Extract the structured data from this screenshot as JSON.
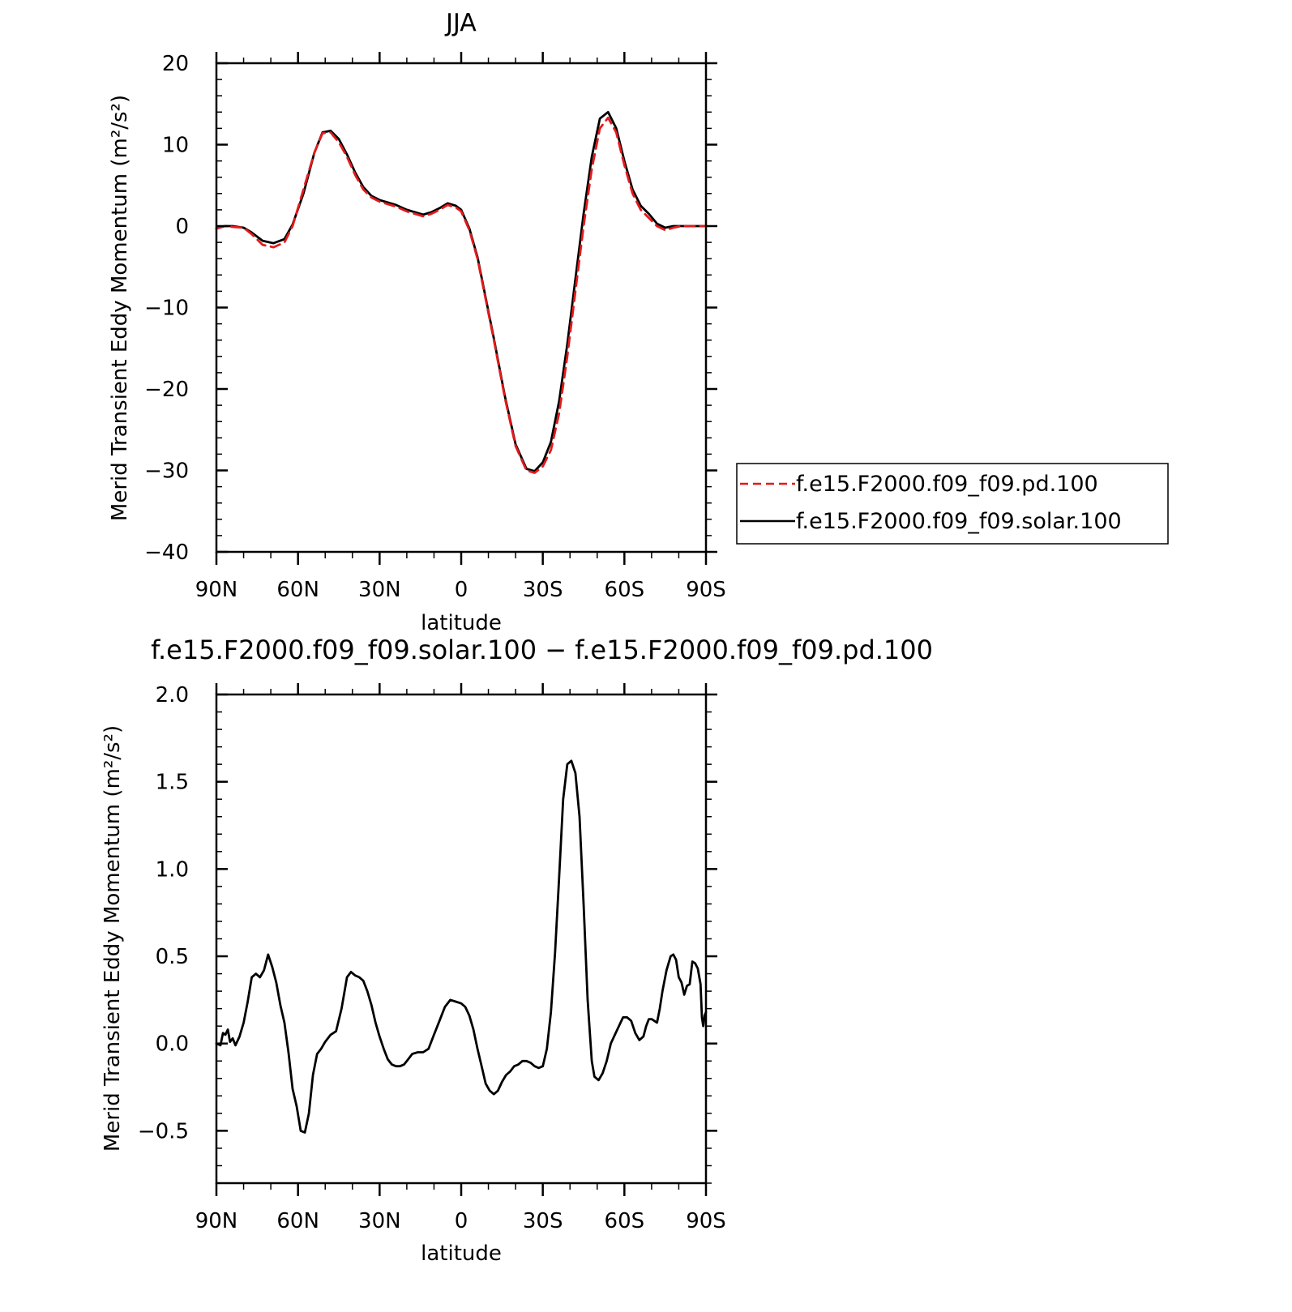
{
  "chart_data": [
    {
      "type": "line",
      "title": "JJA",
      "xlabel": "latitude",
      "ylabel": "Merid Transient Eddy Momentum (m²/s²)",
      "xlim": [
        90,
        -90
      ],
      "ylim": [
        -40,
        20
      ],
      "x_ticks": [
        {
          "value": 90,
          "label": "90N"
        },
        {
          "value": 60,
          "label": "60N"
        },
        {
          "value": 30,
          "label": "30N"
        },
        {
          "value": 0,
          "label": "0"
        },
        {
          "value": -30,
          "label": "30S"
        },
        {
          "value": -60,
          "label": "60S"
        },
        {
          "value": -90,
          "label": "90S"
        }
      ],
      "y_ticks": [
        {
          "value": 20,
          "label": "20"
        },
        {
          "value": 10,
          "label": "10"
        },
        {
          "value": 0,
          "label": "0"
        },
        {
          "value": -10,
          "label": "−10"
        },
        {
          "value": -20,
          "label": "−20"
        },
        {
          "value": -30,
          "label": "−30"
        },
        {
          "value": -40,
          "label": "−40"
        }
      ],
      "legend": "right",
      "series": [
        {
          "name": "f.e15.F2000.f09_f09.pd.100",
          "color": "#e31a1c",
          "dash": "dashed",
          "x": [
            90,
            87,
            84,
            80,
            77,
            73,
            69,
            65,
            62,
            58,
            54,
            51,
            48,
            45,
            42,
            39,
            36,
            33,
            30,
            27,
            24,
            20,
            17,
            14,
            11,
            8,
            5,
            2,
            0,
            -3,
            -6,
            -9,
            -12,
            -16,
            -20,
            -24,
            -27,
            -30,
            -33,
            -36,
            -39,
            -42,
            -45,
            -48,
            -51,
            -54,
            -57,
            -60,
            -63,
            -66,
            -69,
            -72,
            -75,
            -78,
            -81,
            -84,
            -86,
            -88,
            -90
          ],
          "y": [
            -0.3,
            0.0,
            -0.1,
            -0.2,
            -1.0,
            -2.3,
            -2.6,
            -2.0,
            0.0,
            4.5,
            9.0,
            11.4,
            11.5,
            10.3,
            8.5,
            6.3,
            4.5,
            3.5,
            3.0,
            2.7,
            2.4,
            1.8,
            1.5,
            1.2,
            1.5,
            2.0,
            2.6,
            2.3,
            1.8,
            -0.5,
            -4.0,
            -9.0,
            -14.0,
            -21.0,
            -27.0,
            -30.0,
            -30.3,
            -29.5,
            -27.5,
            -23.0,
            -16.0,
            -8.0,
            0.0,
            7.0,
            12.0,
            13.3,
            11.5,
            7.5,
            4.0,
            2.0,
            1.0,
            0.0,
            -0.5,
            -0.2,
            0.0,
            0.0,
            0.0,
            0.0,
            0.0
          ]
        },
        {
          "name": "f.e15.F2000.f09_f09.solar.100",
          "color": "#000000",
          "dash": "solid",
          "x": [
            90,
            87,
            84,
            80,
            77,
            73,
            69,
            65,
            62,
            58,
            54,
            51,
            48,
            45,
            42,
            39,
            36,
            33,
            30,
            27,
            24,
            20,
            17,
            14,
            11,
            8,
            5,
            2,
            0,
            -3,
            -6,
            -9,
            -12,
            -16,
            -20,
            -24,
            -27,
            -30,
            -33,
            -36,
            -39,
            -42,
            -45,
            -48,
            -51,
            -54,
            -57,
            -60,
            -63,
            -66,
            -69,
            -72,
            -75,
            -78,
            -81,
            -84,
            -86,
            -88,
            -90
          ],
          "y": [
            -0.3,
            0.0,
            0.0,
            -0.2,
            -0.8,
            -1.8,
            -2.1,
            -1.6,
            0.2,
            4.0,
            9.0,
            11.5,
            11.7,
            10.7,
            8.8,
            6.6,
            4.8,
            3.7,
            3.2,
            2.9,
            2.6,
            2.0,
            1.7,
            1.4,
            1.7,
            2.2,
            2.8,
            2.5,
            2.0,
            -0.3,
            -3.8,
            -8.8,
            -13.8,
            -20.8,
            -26.8,
            -29.8,
            -30.1,
            -29.0,
            -26.5,
            -21.5,
            -14.5,
            -6.5,
            1.5,
            8.5,
            13.2,
            14.0,
            12.0,
            8.0,
            4.5,
            2.5,
            1.5,
            0.3,
            -0.2,
            0.0,
            0.0,
            0.0,
            0.0,
            0.0,
            0.0
          ]
        }
      ]
    },
    {
      "type": "line",
      "title": "f.e15.F2000.f09_f09.solar.100 − f.e15.F2000.f09_f09.pd.100",
      "xlabel": "latitude",
      "ylabel": "Merid Transient Eddy Momentum (m²/s²)",
      "xlim": [
        90,
        -90
      ],
      "ylim": [
        -0.8,
        2.0
      ],
      "x_ticks": [
        {
          "value": 90,
          "label": "90N"
        },
        {
          "value": 60,
          "label": "60N"
        },
        {
          "value": 30,
          "label": "30N"
        },
        {
          "value": 0,
          "label": "0"
        },
        {
          "value": -30,
          "label": "30S"
        },
        {
          "value": -60,
          "label": "60S"
        },
        {
          "value": -90,
          "label": "90S"
        }
      ],
      "y_ticks": [
        {
          "value": 2.0,
          "label": "2.0"
        },
        {
          "value": 1.5,
          "label": "1.5"
        },
        {
          "value": 1.0,
          "label": "1.0"
        },
        {
          "value": 0.5,
          "label": "0.5"
        },
        {
          "value": 0.0,
          "label": "0.0"
        },
        {
          "value": -0.5,
          "label": "−0.5"
        }
      ],
      "series": [
        {
          "color": "#000000",
          "dash": "solid",
          "x": [
            90,
            88.5,
            87.6,
            86.7,
            85.8,
            85.0,
            84.0,
            83.0,
            81.5,
            80.0,
            78.5,
            77.0,
            75.5,
            74.0,
            72.5,
            71.0,
            69.5,
            68.0,
            66.5,
            65.0,
            63.5,
            62.0,
            60.5,
            59.0,
            57.5,
            56.0,
            54.5,
            53.0,
            51.5,
            50.0,
            48.0,
            46.0,
            44.0,
            42.0,
            40.5,
            39.0,
            37.5,
            36.0,
            34.5,
            33.0,
            31.5,
            30.0,
            28.5,
            27.0,
            25.5,
            24.0,
            22.5,
            21.0,
            19.5,
            18.0,
            16.0,
            14.0,
            12.0,
            10.0,
            8.0,
            6.0,
            4.0,
            2.0,
            0.0,
            -1.5,
            -3.0,
            -4.5,
            -6.0,
            -7.5,
            -9.0,
            -10.5,
            -12.0,
            -13.5,
            -15.0,
            -16.5,
            -18.0,
            -19.5,
            -21.0,
            -22.5,
            -24.0,
            -25.5,
            -27.0,
            -28.5,
            -30.0,
            -31.5,
            -33.0,
            -34.5,
            -36.0,
            -37.5,
            -39.0,
            -40.5,
            -42.0,
            -43.5,
            -45.0,
            -46.5,
            -48.0,
            -49.0,
            -50.5,
            -52.0,
            -53.5,
            -55.0,
            -56.5,
            -58.0,
            -59.5,
            -61.0,
            -62.5,
            -64.0,
            -65.5,
            -67.0,
            -68.0,
            -69.0,
            -70.0,
            -71.0,
            -72.0,
            -73.0,
            -74.0,
            -75.5,
            -77.0,
            -78.0,
            -79.0,
            -80.0,
            -81.0,
            -82.0,
            -83.0,
            -84.0,
            -85.0,
            -86.0,
            -87.0,
            -88.0,
            -88.5,
            -89.0,
            -89.5,
            -90.0
          ],
          "y": [
            0.0,
            -0.01,
            0.06,
            0.05,
            0.08,
            0.01,
            0.03,
            -0.01,
            0.04,
            0.12,
            0.24,
            0.38,
            0.4,
            0.38,
            0.42,
            0.51,
            0.44,
            0.35,
            0.22,
            0.12,
            -0.05,
            -0.26,
            -0.36,
            -0.5,
            -0.51,
            -0.4,
            -0.18,
            -0.06,
            -0.03,
            0.01,
            0.05,
            0.07,
            0.2,
            0.38,
            0.41,
            0.39,
            0.38,
            0.36,
            0.3,
            0.22,
            0.12,
            0.04,
            -0.03,
            -0.09,
            -0.12,
            -0.13,
            -0.13,
            -0.12,
            -0.09,
            -0.06,
            -0.05,
            -0.05,
            -0.03,
            0.05,
            0.13,
            0.21,
            0.25,
            0.24,
            0.23,
            0.21,
            0.16,
            0.08,
            -0.03,
            -0.13,
            -0.23,
            -0.27,
            -0.29,
            -0.27,
            -0.22,
            -0.18,
            -0.16,
            -0.13,
            -0.12,
            -0.1,
            -0.1,
            -0.11,
            -0.13,
            -0.14,
            -0.13,
            -0.03,
            0.18,
            0.52,
            0.95,
            1.4,
            1.6,
            1.62,
            1.55,
            1.3,
            0.8,
            0.25,
            -0.1,
            -0.19,
            -0.21,
            -0.17,
            -0.1,
            0.0,
            0.05,
            0.1,
            0.15,
            0.15,
            0.13,
            0.06,
            0.02,
            0.04,
            0.1,
            0.14,
            0.14,
            0.13,
            0.12,
            0.2,
            0.3,
            0.42,
            0.5,
            0.51,
            0.48,
            0.38,
            0.35,
            0.28,
            0.33,
            0.34,
            0.47,
            0.46,
            0.43,
            0.34,
            0.15,
            0.1,
            0.16,
            0.18
          ]
        }
      ]
    }
  ]
}
